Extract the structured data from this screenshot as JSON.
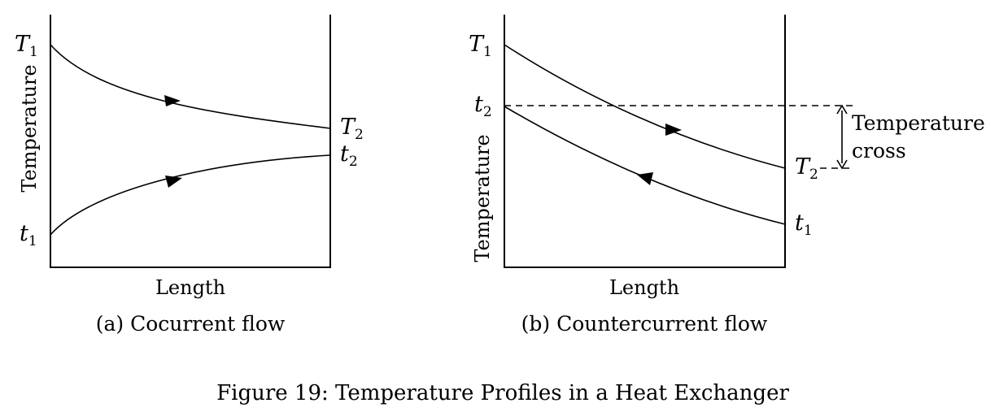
{
  "figure_caption": "Figure 19: Temperature Profiles in a Heat Exchanger",
  "panels": {
    "a": {
      "caption": "(a) Cocurrent flow",
      "xlabel": "Length",
      "ylabel": "Temperature",
      "hot_in": {
        "main": "T",
        "sub": "1"
      },
      "hot_out": {
        "main": "T",
        "sub": "2"
      },
      "cold_in": {
        "main": "t",
        "sub": "1"
      },
      "cold_out": {
        "main": "t",
        "sub": "2"
      }
    },
    "b": {
      "caption": "(b) Countercurrent flow",
      "xlabel": "Length",
      "ylabel": "Temperature",
      "hot_in": {
        "main": "T",
        "sub": "1"
      },
      "hot_out": {
        "main": "T",
        "sub": "2"
      },
      "cold_in": {
        "main": "t",
        "sub": "1"
      },
      "cold_out": {
        "main": "t",
        "sub": "2"
      },
      "annotation_line1": "Temperature",
      "annotation_line2": "cross"
    }
  }
}
